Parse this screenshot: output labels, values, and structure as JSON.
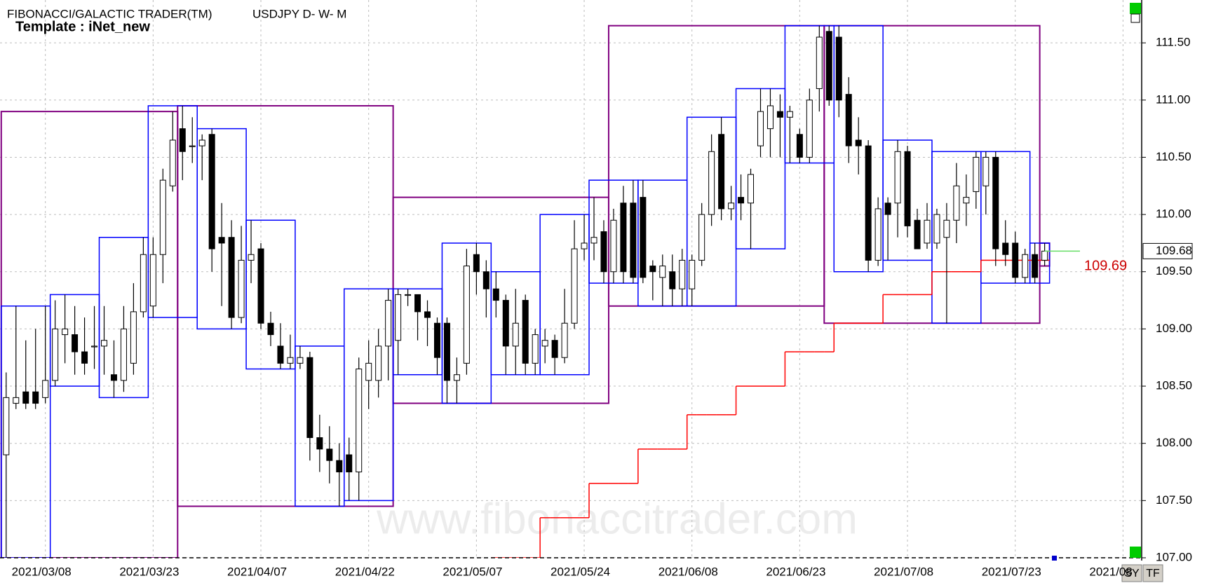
{
  "chart_data": {
    "type": "candlestick",
    "title": "FIBONACCI/GALACTIC TRADER(TM)",
    "subtitle": "USDJPY D- W- M",
    "template": "Template : iNet_new",
    "watermark": "www.fibonaccitrader.com",
    "buttons": [
      "SY",
      "TF"
    ],
    "last_price": 109.68,
    "stop_price": 109.69,
    "up_color": "#ffffff",
    "down_color": "#000000",
    "weekly_box_color": "#0000ff",
    "monthly_box_color": "#800080",
    "stop_color": "#ff0000",
    "ylim": [
      107,
      111.85
    ],
    "yticks": [
      {
        "value": 107,
        "label": "107.00"
      },
      {
        "value": 107.5,
        "label": "107.50"
      },
      {
        "value": 108,
        "label": "108.00"
      },
      {
        "value": 108.5,
        "label": "108.50"
      },
      {
        "value": 109,
        "label": "109.00"
      },
      {
        "value": 109.5,
        "label": "109.50"
      },
      {
        "value": 110,
        "label": "110.00"
      },
      {
        "value": 110.5,
        "label": "110.50"
      },
      {
        "value": 111,
        "label": "111.00"
      },
      {
        "value": 111.5,
        "label": "111.50"
      }
    ],
    "grid": true,
    "categories": [
      null,
      null,
      null,
      null,
      "2021/03/08",
      null,
      null,
      null,
      null,
      null,
      null,
      null,
      null,
      null,
      null,
      "2021/03/23",
      null,
      null,
      null,
      null,
      null,
      null,
      null,
      null,
      null,
      null,
      "2021/04/07",
      null,
      null,
      null,
      null,
      null,
      null,
      null,
      null,
      null,
      null,
      "2021/04/22",
      null,
      null,
      null,
      null,
      null,
      null,
      null,
      null,
      null,
      null,
      "2021/05/07",
      null,
      null,
      null,
      null,
      null,
      null,
      null,
      null,
      null,
      null,
      "2021/05/24",
      null,
      null,
      null,
      null,
      null,
      null,
      null,
      null,
      null,
      null,
      "2021/06/08",
      null,
      null,
      null,
      null,
      null,
      null,
      null,
      null,
      null,
      null,
      "2021/06/23",
      null,
      null,
      null,
      null,
      null,
      null,
      null,
      null,
      null,
      null,
      "2021/07/08",
      null,
      null,
      null,
      null,
      null,
      null,
      null,
      null,
      null,
      null,
      "2021/07/23",
      null,
      null,
      null,
      null,
      null,
      null,
      null,
      null,
      null,
      null,
      "2021/08"
    ],
    "ohlc": [
      [
        107.9,
        108.62,
        107.0,
        108.4
      ],
      [
        108.35,
        109.2,
        108.3,
        108.4
      ],
      [
        108.45,
        108.9,
        108.3,
        108.35
      ],
      [
        108.45,
        109.0,
        108.3,
        108.35
      ],
      [
        108.4,
        109.2,
        108.35,
        108.55
      ],
      [
        108.55,
        109.25,
        108.5,
        109.0
      ],
      [
        108.95,
        109.3,
        108.7,
        109.0
      ],
      [
        108.95,
        109.2,
        108.6,
        108.8
      ],
      [
        108.8,
        109.1,
        108.6,
        108.7
      ],
      [
        108.85,
        109.2,
        108.65,
        108.85
      ],
      [
        108.85,
        109.2,
        108.6,
        108.9
      ],
      [
        108.6,
        108.9,
        108.4,
        108.55
      ],
      [
        108.55,
        109.2,
        108.45,
        109.0
      ],
      [
        108.7,
        109.4,
        108.6,
        109.15
      ],
      [
        109.15,
        109.8,
        109.1,
        109.65
      ],
      [
        109.2,
        109.8,
        109.1,
        109.65
      ],
      [
        109.65,
        110.4,
        109.4,
        110.3
      ],
      [
        110.25,
        110.9,
        110.2,
        110.65
      ],
      [
        110.75,
        110.95,
        110.3,
        110.55
      ],
      [
        110.6,
        110.85,
        110.45,
        110.6
      ],
      [
        110.6,
        110.7,
        110.3,
        110.65
      ],
      [
        110.7,
        110.75,
        109.5,
        109.7
      ],
      [
        109.8,
        110.1,
        109.2,
        109.75
      ],
      [
        109.8,
        109.95,
        109.0,
        109.1
      ],
      [
        109.1,
        109.9,
        109.05,
        109.6
      ],
      [
        109.6,
        109.95,
        109.4,
        109.65
      ],
      [
        109.7,
        109.75,
        109.0,
        109.05
      ],
      [
        109.05,
        109.15,
        108.85,
        108.95
      ],
      [
        108.85,
        109.05,
        108.65,
        108.7
      ],
      [
        108.7,
        108.95,
        108.65,
        108.75
      ],
      [
        108.7,
        108.85,
        108.65,
        108.75
      ],
      [
        108.75,
        108.8,
        107.85,
        108.05
      ],
      [
        108.05,
        108.25,
        107.75,
        107.95
      ],
      [
        107.95,
        108.15,
        107.65,
        107.85
      ],
      [
        107.85,
        108.0,
        107.45,
        107.75
      ],
      [
        107.9,
        108.05,
        107.5,
        107.75
      ],
      [
        107.75,
        108.75,
        107.5,
        108.65
      ],
      [
        108.55,
        108.9,
        108.3,
        108.7
      ],
      [
        108.55,
        109.0,
        108.4,
        108.85
      ],
      [
        108.85,
        109.35,
        108.55,
        109.25
      ],
      [
        108.9,
        109.35,
        108.6,
        109.3
      ],
      [
        109.3,
        109.35,
        109.2,
        109.3
      ],
      [
        109.3,
        109.3,
        108.9,
        109.15
      ],
      [
        109.15,
        109.25,
        108.85,
        109.1
      ],
      [
        109.05,
        109.1,
        108.6,
        108.75
      ],
      [
        109.05,
        109.1,
        108.35,
        108.55
      ],
      [
        108.55,
        108.75,
        108.35,
        108.6
      ],
      [
        108.7,
        109.7,
        108.6,
        109.55
      ],
      [
        109.65,
        109.75,
        109.3,
        109.5
      ],
      [
        109.5,
        109.6,
        109.1,
        109.35
      ],
      [
        109.35,
        109.5,
        109.1,
        109.25
      ],
      [
        109.25,
        109.3,
        108.6,
        108.85
      ],
      [
        108.85,
        109.35,
        108.6,
        109.05
      ],
      [
        109.25,
        109.3,
        108.6,
        108.7
      ],
      [
        108.7,
        109.0,
        108.6,
        108.95
      ],
      [
        108.85,
        109.0,
        108.7,
        108.9
      ],
      [
        108.9,
        108.95,
        108.6,
        108.75
      ],
      [
        108.75,
        109.35,
        108.7,
        109.05
      ],
      [
        109.05,
        109.95,
        109.0,
        109.7
      ],
      [
        109.7,
        110.0,
        109.6,
        109.75
      ],
      [
        109.75,
        110.15,
        109.6,
        109.8
      ],
      [
        109.85,
        109.95,
        109.4,
        109.5
      ],
      [
        109.5,
        110.05,
        109.4,
        109.95
      ],
      [
        110.1,
        110.25,
        109.4,
        109.5
      ],
      [
        110.1,
        110.3,
        109.4,
        109.45
      ],
      [
        110.15,
        110.3,
        109.4,
        109.45
      ],
      [
        109.55,
        109.6,
        109.25,
        109.5
      ],
      [
        109.45,
        109.65,
        109.2,
        109.55
      ],
      [
        109.5,
        109.65,
        109.2,
        109.35
      ],
      [
        109.35,
        109.7,
        109.2,
        109.6
      ],
      [
        109.35,
        109.65,
        109.2,
        109.6
      ],
      [
        109.6,
        110.1,
        109.55,
        110.0
      ],
      [
        110.0,
        110.7,
        109.9,
        110.55
      ],
      [
        110.7,
        110.85,
        109.95,
        110.05
      ],
      [
        110.05,
        110.25,
        109.95,
        110.1
      ],
      [
        110.15,
        110.35,
        109.95,
        110.1
      ],
      [
        110.1,
        110.4,
        109.7,
        110.35
      ],
      [
        110.6,
        111.1,
        110.5,
        110.9
      ],
      [
        110.75,
        111.1,
        110.5,
        110.95
      ],
      [
        110.9,
        111.05,
        110.5,
        110.85
      ],
      [
        110.85,
        110.95,
        110.45,
        110.9
      ],
      [
        110.7,
        110.75,
        110.45,
        110.5
      ],
      [
        110.5,
        111.1,
        110.45,
        111.0
      ],
      [
        111.1,
        111.65,
        110.9,
        111.55
      ],
      [
        111.6,
        111.65,
        110.95,
        111.0
      ],
      [
        111.55,
        111.65,
        110.85,
        111.0
      ],
      [
        111.05,
        111.2,
        110.45,
        110.6
      ],
      [
        110.65,
        110.85,
        110.35,
        110.6
      ],
      [
        110.6,
        110.65,
        109.5,
        109.6
      ],
      [
        109.6,
        110.15,
        109.55,
        110.05
      ],
      [
        110.1,
        110.15,
        109.6,
        110.0
      ],
      [
        110.1,
        110.65,
        109.8,
        110.55
      ],
      [
        110.55,
        110.6,
        109.8,
        109.9
      ],
      [
        109.95,
        110.05,
        109.7,
        109.7
      ],
      [
        109.75,
        110.1,
        109.7,
        109.95
      ],
      [
        109.75,
        110.05,
        109.7,
        110.0
      ],
      [
        109.8,
        110.1,
        109.05,
        109.95
      ],
      [
        109.95,
        110.45,
        109.75,
        110.25
      ],
      [
        110.1,
        110.35,
        109.9,
        110.15
      ],
      [
        110.2,
        110.55,
        110.05,
        110.5
      ],
      [
        110.25,
        110.55,
        110.0,
        110.5
      ],
      [
        110.5,
        110.55,
        109.55,
        109.7
      ],
      [
        109.75,
        109.95,
        109.55,
        109.65
      ],
      [
        109.75,
        109.85,
        109.4,
        109.45
      ],
      [
        109.45,
        109.7,
        109.4,
        109.65
      ],
      [
        109.65,
        109.75,
        109.4,
        109.45
      ],
      [
        109.6,
        109.75,
        109.55,
        109.68
      ],
      null,
      null,
      null,
      null,
      null,
      null,
      null,
      null
    ],
    "stop": [
      null,
      null,
      null,
      null,
      null,
      null,
      null,
      null,
      null,
      null,
      null,
      null,
      null,
      null,
      null,
      null,
      null,
      null,
      null,
      null,
      null,
      null,
      null,
      null,
      null,
      null,
      null,
      null,
      null,
      null,
      null,
      null,
      null,
      null,
      null,
      null,
      null,
      null,
      null,
      null,
      null,
      null,
      null,
      null,
      null,
      null,
      null,
      null,
      null,
      null,
      107.0,
      107.0,
      107.0,
      107.0,
      107.0,
      107.35,
      107.35,
      107.35,
      107.35,
      107.35,
      107.65,
      107.65,
      107.65,
      107.65,
      107.65,
      107.95,
      107.95,
      107.95,
      107.95,
      107.95,
      108.25,
      108.25,
      108.25,
      108.25,
      108.25,
      108.5,
      108.5,
      108.5,
      108.5,
      108.5,
      108.8,
      108.8,
      108.8,
      108.8,
      108.8,
      109.05,
      109.05,
      109.05,
      109.05,
      109.05,
      109.3,
      109.3,
      109.3,
      109.3,
      109.3,
      109.5,
      109.5,
      109.5,
      109.5,
      109.5,
      109.6,
      109.6,
      109.6,
      109.6,
      109.6,
      109.6,
      109.6,
      null,
      null,
      null,
      null,
      null,
      null,
      null,
      null
    ]
  }
}
